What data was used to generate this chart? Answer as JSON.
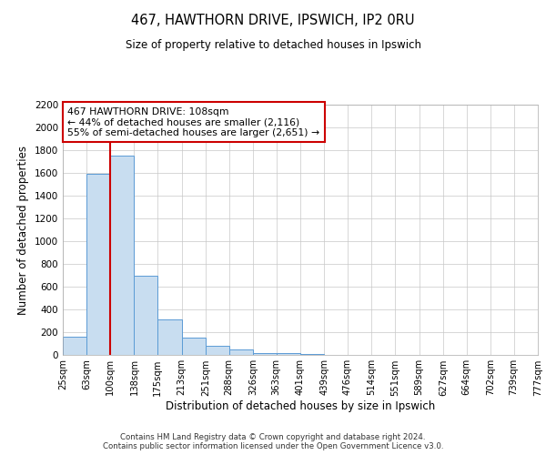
{
  "title": "467, HAWTHORN DRIVE, IPSWICH, IP2 0RU",
  "subtitle": "Size of property relative to detached houses in Ipswich",
  "xlabel": "Distribution of detached houses by size in Ipswich",
  "ylabel": "Number of detached properties",
  "bar_color": "#c8ddf0",
  "bar_edge_color": "#5b9bd5",
  "background_color": "#ffffff",
  "plot_bg_color": "#ffffff",
  "grid_color": "#c8c8c8",
  "vline_x_bin_index": 2,
  "vline_color": "#cc0000",
  "annotation_title": "467 HAWTHORN DRIVE: 108sqm",
  "annotation_line1": "← 44% of detached houses are smaller (2,116)",
  "annotation_line2": "55% of semi-detached houses are larger (2,651) →",
  "annotation_box_edge": "#cc0000",
  "bin_edges": [
    25,
    63,
    100,
    138,
    175,
    213,
    251,
    288,
    326,
    363,
    401,
    439,
    476,
    514,
    551,
    589,
    627,
    664,
    702,
    739,
    777
  ],
  "counts": [
    160,
    1590,
    1750,
    700,
    310,
    155,
    80,
    45,
    20,
    15,
    5,
    0,
    0,
    0,
    0,
    0,
    0,
    0,
    0,
    0
  ],
  "ylim": [
    0,
    2200
  ],
  "yticks": [
    0,
    200,
    400,
    600,
    800,
    1000,
    1200,
    1400,
    1600,
    1800,
    2000,
    2200
  ],
  "footer1": "Contains HM Land Registry data © Crown copyright and database right 2024.",
  "footer2": "Contains public sector information licensed under the Open Government Licence v3.0."
}
